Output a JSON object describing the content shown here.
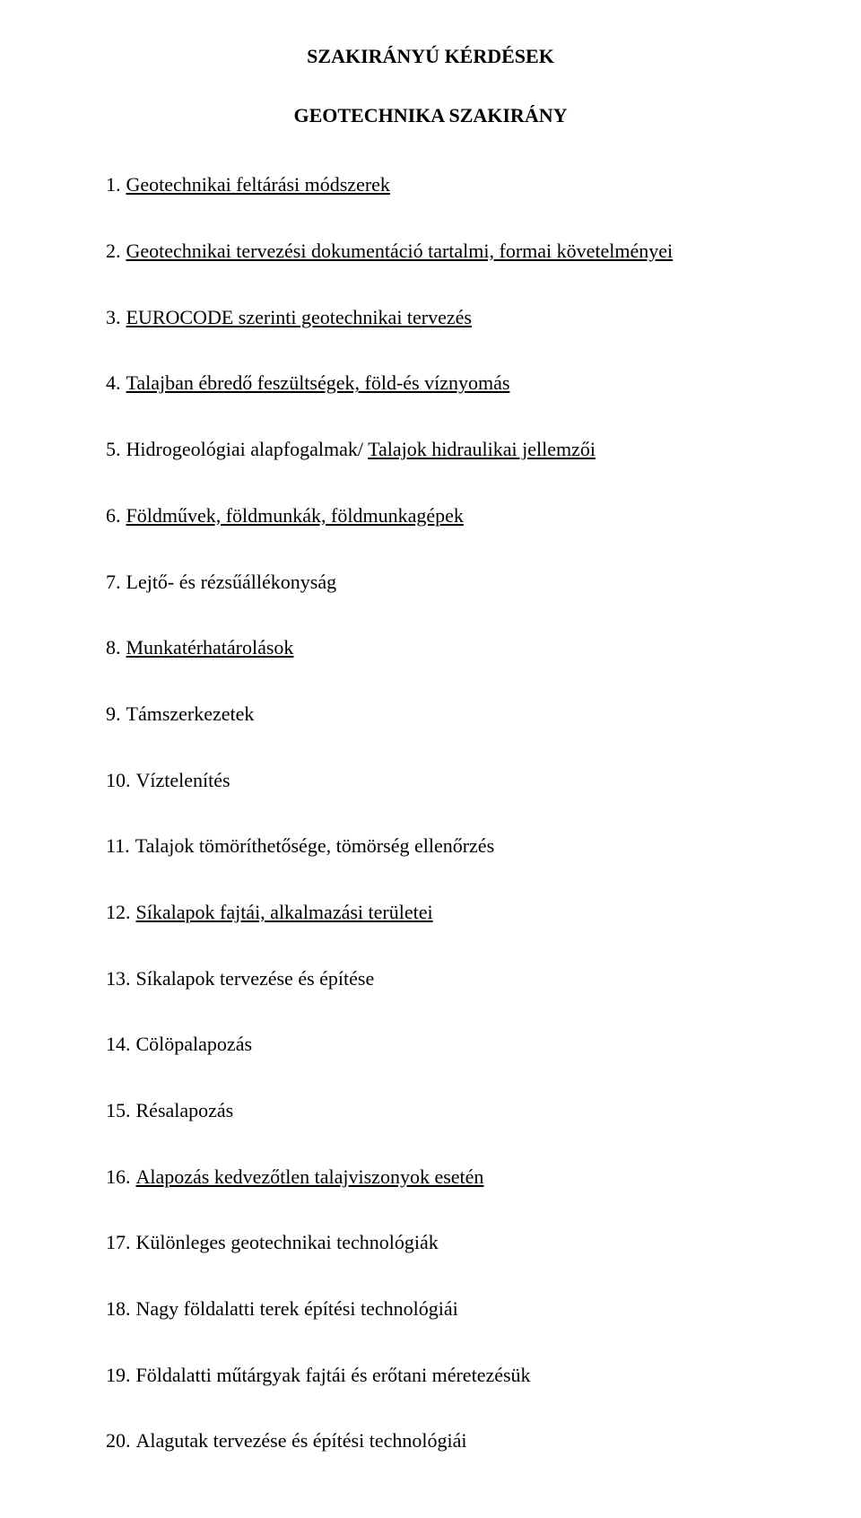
{
  "title": "SZAKIRÁNYÚ KÉRDÉSEK",
  "subtitle": "GEOTECHNIKA SZAKIRÁNY",
  "items": [
    {
      "num": "1.",
      "parts": [
        {
          "text": "Geotechnikai feltárási módszerek",
          "u": true
        }
      ]
    },
    {
      "num": "2.",
      "parts": [
        {
          "text": "Geotechnikai tervezési dokumentáció tartalmi, formai követelményei",
          "u": true
        }
      ]
    },
    {
      "num": "3.",
      "parts": [
        {
          "text": "EUROCODE szerinti geotechnikai tervezés",
          "u": true
        }
      ]
    },
    {
      "num": "4.",
      "parts": [
        {
          "text": "Talajban ébredő feszültségek, föld-és víznyomás",
          "u": true
        }
      ]
    },
    {
      "num": "5.",
      "parts": [
        {
          "text": "Hidrogeológiai alapfogalmak/ ",
          "u": false
        },
        {
          "text": "Talajok hidraulikai jellemzői",
          "u": true
        }
      ]
    },
    {
      "num": "6.",
      "parts": [
        {
          "text": "Földművek, földmunkák, földmunkagépek",
          "u": true
        }
      ]
    },
    {
      "num": "7.",
      "parts": [
        {
          "text": "Lejtő- és rézsűállékonyság",
          "u": false
        }
      ]
    },
    {
      "num": "8.",
      "parts": [
        {
          "text": "Munkatérhatárolások",
          "u": true
        }
      ]
    },
    {
      "num": "9.",
      "parts": [
        {
          "text": "Támszerkezetek",
          "u": false
        }
      ]
    },
    {
      "num": "10.",
      "parts": [
        {
          "text": "Víztelenítés",
          "u": false
        }
      ]
    },
    {
      "num": "11.",
      "parts": [
        {
          "text": "Talajok tömöríthetősége, tömörség ellenőrzés",
          "u": false
        }
      ]
    },
    {
      "num": "12.",
      "parts": [
        {
          "text": "Síkalapok fajtái, alkalmazási területei",
          "u": true
        }
      ]
    },
    {
      "num": "13.",
      "parts": [
        {
          "text": "Síkalapok tervezése és építése",
          "u": false
        }
      ]
    },
    {
      "num": "14.",
      "parts": [
        {
          "text": "Cölöpalapozás",
          "u": false
        }
      ]
    },
    {
      "num": "15.",
      "parts": [
        {
          "text": "Résalapozás",
          "u": false
        }
      ]
    },
    {
      "num": "16.",
      "parts": [
        {
          "text": "Alapozás kedvezőtlen talajviszonyok esetén",
          "u": true
        }
      ]
    },
    {
      "num": "17.",
      "parts": [
        {
          "text": "Különleges geotechnikai technológiák",
          "u": false
        }
      ]
    },
    {
      "num": "18.",
      "parts": [
        {
          "text": "Nagy földalatti terek építési technológiái",
          "u": false
        }
      ]
    },
    {
      "num": "19.",
      "parts": [
        {
          "text": "Földalatti műtárgyak fajtái és erőtani méretezésük",
          "u": false
        }
      ]
    },
    {
      "num": "20.",
      "parts": [
        {
          "text": "Alagutak tervezése és építési technológiái",
          "u": false
        }
      ]
    }
  ]
}
